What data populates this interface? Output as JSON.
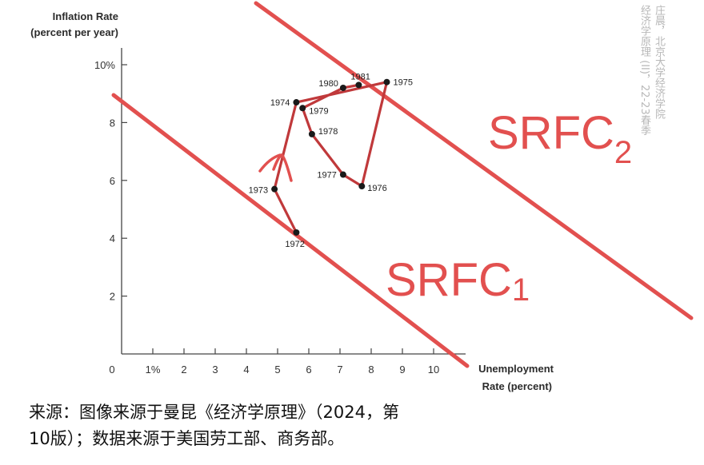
{
  "chart_data": {
    "type": "line",
    "title": "",
    "ylabel_line1": "Inflation Rate",
    "ylabel_line2": "(percent per year)",
    "xlabel_line1": "Unemployment",
    "xlabel_line2": "Rate (percent)",
    "xlim": [
      0,
      10
    ],
    "ylim": [
      0,
      10
    ],
    "x_ticks": [
      "0",
      "1%",
      "2",
      "3",
      "4",
      "5",
      "6",
      "7",
      "8",
      "9",
      "10"
    ],
    "y_ticks": [
      "2",
      "4",
      "6",
      "8",
      "10%"
    ],
    "grid": false,
    "series": [
      {
        "points": [
          {
            "label": "1972",
            "x": 5.6,
            "y": 4.2
          },
          {
            "label": "1973",
            "x": 4.9,
            "y": 5.7
          },
          {
            "label": "1974",
            "x": 5.6,
            "y": 8.7
          },
          {
            "label": "1975",
            "x": 8.5,
            "y": 9.4
          },
          {
            "label": "1976",
            "x": 7.7,
            "y": 5.8
          },
          {
            "label": "1977",
            "x": 7.1,
            "y": 6.2
          },
          {
            "label": "1978",
            "x": 6.1,
            "y": 7.6
          },
          {
            "label": "1979",
            "x": 5.8,
            "y": 8.5
          },
          {
            "label": "1980",
            "x": 7.1,
            "y": 9.2
          },
          {
            "label": "1981",
            "x": 7.6,
            "y": 9.3
          }
        ]
      }
    ],
    "annotations": {
      "curve1": {
        "text": "SRFC",
        "subscript": "1"
      },
      "curve2": {
        "text": "SRFC",
        "subscript": "2"
      }
    },
    "colors": {
      "data_line": "#c0393b",
      "annotation": "#e2504f",
      "axis": "#444444",
      "point": "#1a1a1a"
    }
  },
  "watermark": {
    "line1": "庄晨，北京大学经济学院",
    "line2": "经济学原理 (II)，22-23春季"
  },
  "caption": {
    "line1": "来源：图像来源于曼昆《经济学原理》（2024，第",
    "line2": "10版）；数据来源于美国劳工部、商务部。"
  }
}
